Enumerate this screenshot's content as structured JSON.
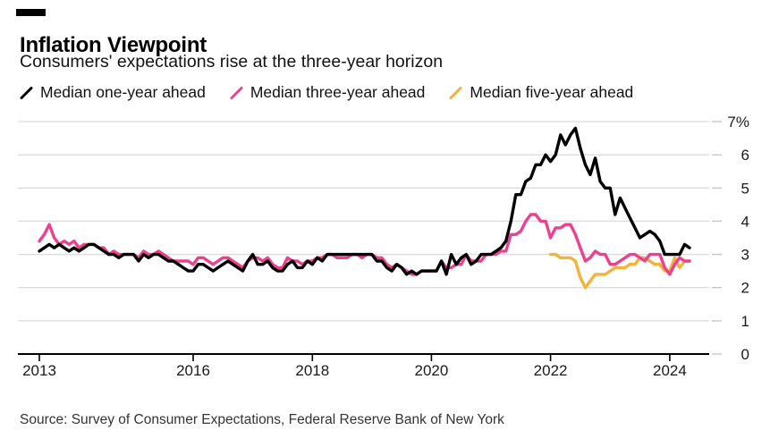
{
  "header": {
    "title": "Inflation Viewpoint",
    "subtitle": "Consumers' expectations rise at the three-year horizon"
  },
  "legend": [
    {
      "label": "Median one-year ahead",
      "color": "#000000"
    },
    {
      "label": "Median three-year ahead",
      "color": "#ea4191"
    },
    {
      "label": "Median five-year ahead",
      "color": "#f2b33d"
    }
  ],
  "footer": {
    "source": "Source: Survey of Consumer Expectations, Federal Reserve Bank of New York"
  },
  "chart_data": {
    "type": "line",
    "title": "Inflation Viewpoint",
    "subtitle": "Consumers' expectations rise at the three-year horizon",
    "x_unit": "monthly survey, Jun 2013 - May 2024",
    "ylim": [
      0,
      7
    ],
    "grid": "horizontal",
    "legend_position": "top",
    "y_ticks": [
      {
        "value": 0,
        "label": "0"
      },
      {
        "value": 1,
        "label": "1"
      },
      {
        "value": 2,
        "label": "2"
      },
      {
        "value": 3,
        "label": "3"
      },
      {
        "value": 4,
        "label": "4"
      },
      {
        "value": 5,
        "label": "5"
      },
      {
        "value": 6,
        "label": "6"
      },
      {
        "value": 7,
        "label": "7%"
      }
    ],
    "x_ticks": [
      {
        "month": 0,
        "label": "2013"
      },
      {
        "month": 31,
        "label": "2016"
      },
      {
        "month": 55,
        "label": "2018"
      },
      {
        "month": 79,
        "label": "2020"
      },
      {
        "month": 103,
        "label": "2022"
      },
      {
        "month": 127,
        "label": "2024"
      }
    ],
    "series": [
      {
        "id": "one-year",
        "name": "Median one-year ahead",
        "color": "#000000",
        "start": "2013-06",
        "start_month": 0,
        "values": [
          3.1,
          3.2,
          3.3,
          3.2,
          3.3,
          3.2,
          3.1,
          3.2,
          3.1,
          3.2,
          3.3,
          3.3,
          3.2,
          3.1,
          3.0,
          3.0,
          2.9,
          3.0,
          3.0,
          3.0,
          2.8,
          3.0,
          2.9,
          3.0,
          3.0,
          2.9,
          2.8,
          2.8,
          2.7,
          2.6,
          2.5,
          2.5,
          2.7,
          2.7,
          2.6,
          2.5,
          2.6,
          2.7,
          2.8,
          2.7,
          2.6,
          2.5,
          2.8,
          3.0,
          2.7,
          2.7,
          2.8,
          2.6,
          2.5,
          2.5,
          2.7,
          2.8,
          2.6,
          2.6,
          2.8,
          2.7,
          2.9,
          2.8,
          3.0,
          3.0,
          3.0,
          3.0,
          3.0,
          3.0,
          3.0,
          3.0,
          3.0,
          3.0,
          2.8,
          2.8,
          2.6,
          2.5,
          2.7,
          2.6,
          2.4,
          2.5,
          2.4,
          2.5,
          2.5,
          2.5,
          2.5,
          2.8,
          2.4,
          3.0,
          2.7,
          2.9,
          3.0,
          2.7,
          2.8,
          3.0,
          3.0,
          3.0,
          3.1,
          3.2,
          3.4,
          4.0,
          4.8,
          4.8,
          5.2,
          5.3,
          5.7,
          5.7,
          6.0,
          5.8,
          6.0,
          6.6,
          6.3,
          6.6,
          6.8,
          6.2,
          5.7,
          5.4,
          5.9,
          5.2,
          5.0,
          5.0,
          4.2,
          4.7,
          4.4,
          4.1,
          3.8,
          3.5,
          3.6,
          3.7,
          3.6,
          3.4,
          3.0,
          3.0,
          3.0,
          3.0,
          3.3,
          3.2
        ]
      },
      {
        "id": "three-year",
        "name": "Median three-year ahead",
        "color": "#ea4191",
        "start": "2013-06",
        "start_month": 0,
        "values": [
          3.4,
          3.6,
          3.9,
          3.5,
          3.3,
          3.4,
          3.3,
          3.4,
          3.2,
          3.3,
          3.3,
          3.3,
          3.2,
          3.2,
          3.0,
          3.1,
          3.0,
          3.0,
          3.0,
          3.0,
          2.9,
          3.1,
          3.0,
          3.0,
          3.1,
          3.0,
          2.9,
          2.8,
          2.8,
          2.8,
          2.8,
          2.7,
          2.9,
          2.9,
          2.8,
          2.7,
          2.8,
          2.9,
          2.9,
          2.8,
          2.7,
          2.6,
          2.8,
          2.9,
          2.9,
          2.8,
          2.9,
          2.7,
          2.6,
          2.6,
          2.9,
          2.8,
          2.8,
          2.7,
          2.8,
          2.8,
          2.9,
          2.9,
          3.0,
          3.0,
          2.9,
          2.9,
          2.9,
          3.0,
          3.0,
          2.9,
          3.0,
          3.0,
          2.9,
          2.9,
          2.7,
          2.6,
          2.7,
          2.6,
          2.5,
          2.4,
          2.4,
          2.5,
          2.5,
          2.5,
          2.5,
          2.8,
          2.6,
          2.6,
          2.7,
          2.7,
          3.0,
          2.8,
          2.8,
          2.8,
          3.0,
          3.0,
          3.0,
          3.1,
          3.1,
          3.6,
          3.6,
          3.7,
          4.0,
          4.2,
          4.2,
          4.0,
          4.0,
          3.5,
          3.8,
          3.8,
          3.9,
          3.9,
          3.6,
          3.2,
          2.8,
          2.9,
          3.1,
          3.0,
          3.0,
          2.7,
          2.7,
          2.8,
          2.9,
          3.0,
          3.0,
          2.9,
          2.8,
          3.0,
          3.0,
          3.0,
          2.6,
          2.4,
          2.7,
          2.9,
          2.8,
          2.8
        ]
      },
      {
        "id": "five-year",
        "name": "Median five-year ahead",
        "color": "#f2b33d",
        "start": "2022-01",
        "start_month": 103,
        "values": [
          3.0,
          3.0,
          2.9,
          2.9,
          2.9,
          2.8,
          2.3,
          2.0,
          2.2,
          2.4,
          2.4,
          2.4,
          2.5,
          2.6,
          2.6,
          2.6,
          2.7,
          2.7,
          2.9,
          2.9,
          2.8,
          2.7,
          2.7,
          2.5,
          2.5,
          2.9,
          2.6,
          2.8,
          2.8
        ]
      }
    ]
  }
}
